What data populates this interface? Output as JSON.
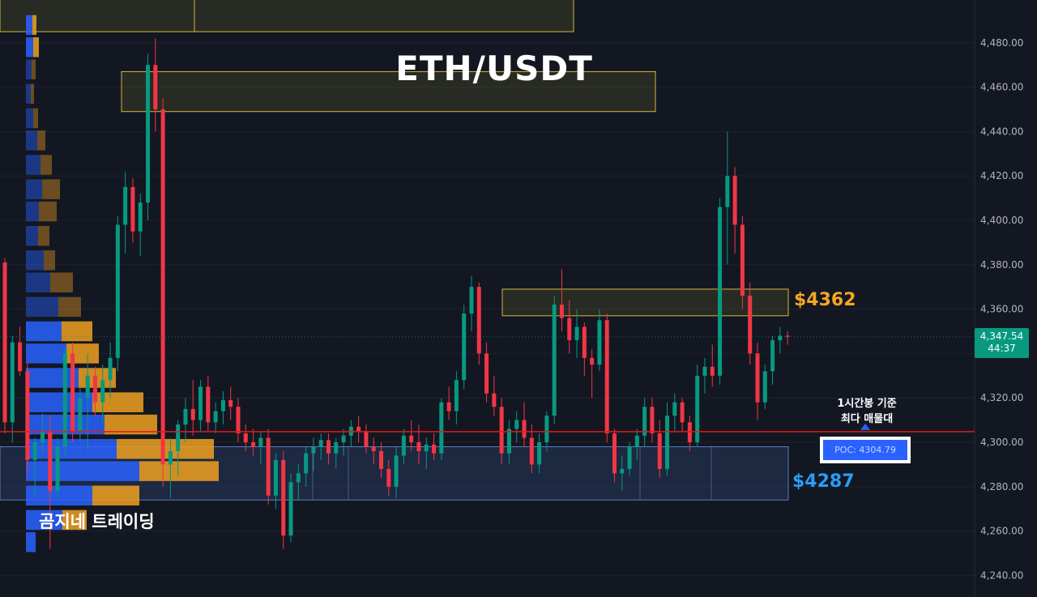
{
  "title": "ETH/USDT",
  "watermark": "곰지네 트레이딩",
  "levels": {
    "upper_label": "$4362",
    "lower_label": "$4287"
  },
  "poc": {
    "label": "POC: 4304.79",
    "note_line1": "1시간봉 기준",
    "note_line2": "최다 매물대"
  },
  "current_price": {
    "price": "4,347.54",
    "countdown": "44:37"
  },
  "colors": {
    "background": "#131722",
    "up_candle": "#089981",
    "down_candle": "#f23645",
    "grid": "#1e222d",
    "zone_yellow": "#d4b83a",
    "zone_blue": "#5b7fbf",
    "poc_line": "#e01b1b",
    "profile_blue": "#2962ff",
    "profile_orange": "#f0a020"
  },
  "chart_data": {
    "type": "candlestick",
    "title": "ETH/USDT",
    "ylim": [
      4233,
      4500
    ],
    "y_axis_side": "right",
    "y_ticks": [
      4240,
      4260,
      4280,
      4300,
      4320,
      4340,
      4360,
      4380,
      4400,
      4420,
      4440,
      4460,
      4480
    ],
    "y_tick_labels": [
      "4,240.00",
      "4,260.00",
      "4,280.00",
      "4,300.00",
      "4,320.00",
      "4,340.00",
      "4,360.00",
      "4,380.00",
      "4,400.00",
      "4,420.00",
      "4,440.00",
      "4,460.00",
      "4,480.00"
    ],
    "grid": true,
    "candles": [
      [
        4381,
        4383,
        4304,
        4309
      ],
      [
        4309,
        4348,
        4300,
        4345
      ],
      [
        4345,
        4352,
        4330,
        4332
      ],
      [
        4332,
        4336,
        4286,
        4292
      ],
      [
        4292,
        4302,
        4276,
        4300
      ],
      [
        4300,
        4313,
        4296,
        4305
      ],
      [
        4305,
        4312,
        4252,
        4278
      ],
      [
        4278,
        4302,
        4275,
        4298
      ],
      [
        4298,
        4343,
        4293,
        4340
      ],
      [
        4340,
        4345,
        4300,
        4305
      ],
      [
        4305,
        4325,
        4300,
        4320
      ],
      [
        4320,
        4340,
        4296,
        4330
      ],
      [
        4330,
        4334,
        4312,
        4318
      ],
      [
        4318,
        4335,
        4308,
        4328
      ],
      [
        4328,
        4345,
        4320,
        4338
      ],
      [
        4338,
        4402,
        4332,
        4398
      ],
      [
        4398,
        4422,
        4385,
        4415
      ],
      [
        4415,
        4419,
        4390,
        4395
      ],
      [
        4395,
        4412,
        4384,
        4408
      ],
      [
        4408,
        4475,
        4400,
        4470
      ],
      [
        4470,
        4482,
        4440,
        4450
      ],
      [
        4450,
        4455,
        4280,
        4290
      ],
      [
        4290,
        4302,
        4275,
        4296
      ],
      [
        4296,
        4310,
        4285,
        4308
      ],
      [
        4308,
        4320,
        4300,
        4315
      ],
      [
        4315,
        4328,
        4303,
        4310
      ],
      [
        4310,
        4328,
        4305,
        4325
      ],
      [
        4325,
        4330,
        4305,
        4309
      ],
      [
        4309,
        4318,
        4304,
        4314
      ],
      [
        4314,
        4323,
        4308,
        4319
      ],
      [
        4319,
        4325,
        4310,
        4316
      ],
      [
        4316,
        4320,
        4300,
        4304
      ],
      [
        4304,
        4308,
        4296,
        4300
      ],
      [
        4300,
        4306,
        4294,
        4298
      ],
      [
        4298,
        4305,
        4290,
        4302
      ],
      [
        4302,
        4306,
        4272,
        4276
      ],
      [
        4276,
        4295,
        4270,
        4292
      ],
      [
        4292,
        4296,
        4252,
        4258
      ],
      [
        4258,
        4286,
        4255,
        4282
      ],
      [
        4282,
        4290,
        4274,
        4286
      ],
      [
        4286,
        4298,
        4280,
        4295
      ],
      [
        4295,
        4302,
        4287,
        4298
      ],
      [
        4298,
        4304,
        4292,
        4301
      ],
      [
        4301,
        4304,
        4290,
        4295
      ],
      [
        4295,
        4302,
        4288,
        4300
      ],
      [
        4300,
        4306,
        4294,
        4303
      ],
      [
        4303,
        4310,
        4298,
        4307
      ],
      [
        4307,
        4312,
        4300,
        4305
      ],
      [
        4305,
        4308,
        4295,
        4298
      ],
      [
        4298,
        4302,
        4290,
        4296
      ],
      [
        4296,
        4300,
        4284,
        4288
      ],
      [
        4288,
        4292,
        4276,
        4280
      ],
      [
        4280,
        4298,
        4275,
        4294
      ],
      [
        4294,
        4306,
        4290,
        4303
      ],
      [
        4303,
        4310,
        4296,
        4300
      ],
      [
        4300,
        4308,
        4290,
        4296
      ],
      [
        4296,
        4302,
        4288,
        4299
      ],
      [
        4299,
        4304,
        4292,
        4295
      ],
      [
        4295,
        4320,
        4292,
        4318
      ],
      [
        4318,
        4325,
        4310,
        4314
      ],
      [
        4314,
        4332,
        4308,
        4328
      ],
      [
        4328,
        4362,
        4324,
        4358
      ],
      [
        4358,
        4375,
        4350,
        4370
      ],
      [
        4370,
        4372,
        4335,
        4340
      ],
      [
        4340,
        4345,
        4318,
        4322
      ],
      [
        4322,
        4330,
        4312,
        4316
      ],
      [
        4316,
        4320,
        4290,
        4295
      ],
      [
        4295,
        4310,
        4290,
        4306
      ],
      [
        4306,
        4314,
        4300,
        4310
      ],
      [
        4310,
        4318,
        4298,
        4302
      ],
      [
        4302,
        4308,
        4286,
        4290
      ],
      [
        4290,
        4304,
        4286,
        4300
      ],
      [
        4300,
        4314,
        4296,
        4312
      ],
      [
        4312,
        4366,
        4308,
        4362
      ],
      [
        4362,
        4378,
        4350,
        4356
      ],
      [
        4356,
        4364,
        4340,
        4346
      ],
      [
        4346,
        4360,
        4338,
        4352
      ],
      [
        4352,
        4354,
        4330,
        4338
      ],
      [
        4338,
        4342,
        4320,
        4335
      ],
      [
        4335,
        4360,
        4332,
        4355
      ],
      [
        4355,
        4358,
        4300,
        4304
      ],
      [
        4304,
        4306,
        4282,
        4286
      ],
      [
        4286,
        4294,
        4278,
        4288
      ],
      [
        4288,
        4300,
        4285,
        4298
      ],
      [
        4298,
        4306,
        4292,
        4303
      ],
      [
        4303,
        4320,
        4298,
        4316
      ],
      [
        4316,
        4320,
        4300,
        4304
      ],
      [
        4304,
        4310,
        4284,
        4288
      ],
      [
        4288,
        4318,
        4285,
        4312
      ],
      [
        4312,
        4322,
        4305,
        4318
      ],
      [
        4318,
        4320,
        4305,
        4309
      ],
      [
        4309,
        4312,
        4296,
        4300
      ],
      [
        4300,
        4335,
        4298,
        4330
      ],
      [
        4330,
        4338,
        4322,
        4334
      ],
      [
        4334,
        4344,
        4325,
        4330
      ],
      [
        4330,
        4410,
        4326,
        4406
      ],
      [
        4406,
        4440,
        4380,
        4420
      ],
      [
        4420,
        4424,
        4385,
        4398
      ],
      [
        4398,
        4402,
        4360,
        4366
      ],
      [
        4366,
        4372,
        4335,
        4340
      ],
      [
        4340,
        4345,
        4310,
        4318
      ],
      [
        4318,
        4335,
        4315,
        4332
      ],
      [
        4332,
        4348,
        4326,
        4346
      ],
      [
        4346,
        4352,
        4340,
        4348
      ],
      [
        4348,
        4350,
        4344,
        4347.54
      ]
    ],
    "volume_profile": {
      "price_bins": [
        4488,
        4478,
        4468,
        4457,
        4446,
        4436,
        4425,
        4414,
        4404,
        4393,
        4382,
        4372,
        4361,
        4350,
        4340,
        4329,
        4318,
        4308,
        4297,
        4287,
        4276,
        4265,
        4255
      ],
      "buy_volume": [
        8,
        9,
        7,
        6,
        9,
        14,
        18,
        20,
        16,
        15,
        22,
        30,
        40,
        44,
        50,
        65,
        82,
        97,
        112,
        140,
        82,
        45,
        12
      ],
      "sell_volume": [
        5,
        7,
        5,
        4,
        6,
        10,
        14,
        22,
        22,
        14,
        14,
        28,
        28,
        38,
        40,
        46,
        63,
        65,
        120,
        98,
        58,
        30,
        0
      ]
    },
    "zones": [
      {
        "type": "supply",
        "label": "$4362",
        "from": 4357,
        "to": 4369
      },
      {
        "type": "supply",
        "from": 4449,
        "to": 4467
      },
      {
        "type": "supply",
        "from": 4485,
        "to": 4500
      },
      {
        "type": "demand",
        "label": "$4287",
        "from": 4274,
        "to": 4298
      }
    ],
    "poc_price": 4304.79
  }
}
